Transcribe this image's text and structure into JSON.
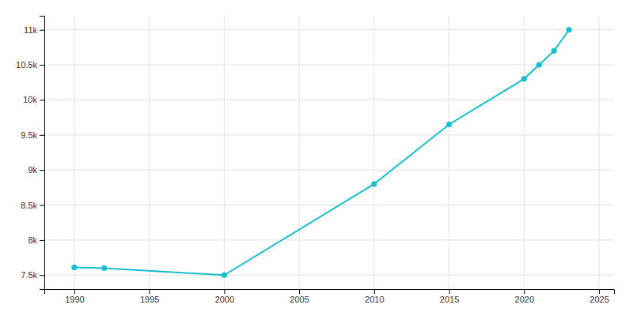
{
  "chart_data": {
    "type": "line",
    "x": [
      1990,
      1992,
      2000,
      2010,
      2015,
      2020,
      2021,
      2022,
      2023
    ],
    "values": [
      7610,
      7600,
      7500,
      8800,
      9650,
      10300,
      10500,
      10700,
      11000
    ],
    "color": "#17becf",
    "marker": "circle",
    "line_style": "solid",
    "xlim": [
      1988,
      2026
    ],
    "ylim": [
      7300,
      11200
    ],
    "xticks": [
      1990,
      1995,
      2000,
      2005,
      2010,
      2015,
      2020,
      2025
    ],
    "yticks": [
      {
        "value": 7500,
        "label": "7.5k"
      },
      {
        "value": 8000,
        "label": "8k"
      },
      {
        "value": 8500,
        "label": "8.5k"
      },
      {
        "value": 9000,
        "label": "9k"
      },
      {
        "value": 9500,
        "label": "9.5k"
      },
      {
        "value": 10000,
        "label": "10k"
      },
      {
        "value": 10500,
        "label": "10.5k"
      },
      {
        "value": 11000,
        "label": "11k"
      }
    ],
    "grid": true
  }
}
